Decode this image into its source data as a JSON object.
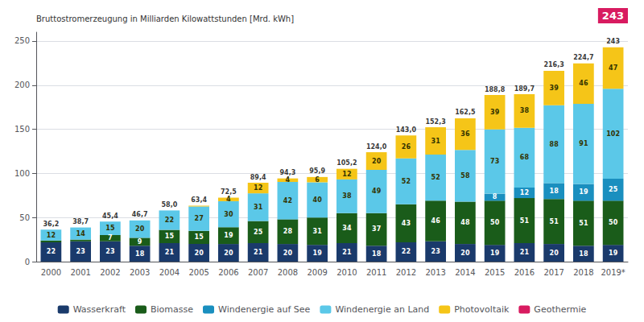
{
  "chart_data": {
    "type": "bar",
    "stacked": true,
    "y_label": "Bruttostromerzeugung in Milliarden Kilowattstunden [Mrd. kWh]",
    "categories": [
      "2000",
      "2001",
      "2002",
      "2003",
      "2004",
      "2005",
      "2006",
      "2007",
      "2008",
      "2009",
      "2010",
      "2011",
      "2012",
      "2013",
      "2014",
      "2015",
      "2016",
      "2017",
      "2018",
      "2019*"
    ],
    "series": [
      {
        "name": "Wasserkraft",
        "color": "#1a3a6b",
        "data_labels": true,
        "values": [
          22,
          23,
          23,
          18,
          21,
          20,
          20,
          21,
          20,
          19,
          21,
          18,
          22,
          23,
          20,
          19,
          21,
          20,
          18,
          19
        ]
      },
      {
        "name": "Biomasse",
        "color": "#1a5c1a",
        "data_labels": true,
        "values": [
          2,
          2,
          7,
          9,
          15,
          15,
          19,
          25,
          28,
          31,
          34,
          37,
          43,
          46,
          48,
          50,
          51,
          51,
          51,
          50
        ],
        "value_labels": [
          null,
          null,
          "7",
          "9",
          "15",
          "15",
          "19",
          "25",
          "28",
          "31",
          "34",
          "37",
          "43",
          "46",
          "48",
          "50",
          "51",
          "51",
          "51",
          "50"
        ]
      },
      {
        "name": "Windenergie auf See",
        "color": "#1a8fbf",
        "data_labels": true,
        "values": [
          0,
          0,
          0,
          0,
          0,
          0,
          0,
          0,
          0,
          0,
          0,
          0,
          0,
          0,
          0,
          8,
          12,
          18,
          19,
          25
        ],
        "value_labels": [
          null,
          null,
          null,
          null,
          null,
          null,
          null,
          null,
          null,
          null,
          null,
          null,
          null,
          null,
          null,
          "8",
          "12",
          "18",
          "19",
          "25"
        ]
      },
      {
        "name": "Windenergie an Land",
        "color": "#5bc8e8",
        "data_labels": true,
        "values": [
          12.2,
          13.7,
          15.4,
          19.7,
          22,
          27.4,
          29.5,
          31.4,
          42.3,
          39.9,
          38.2,
          49,
          52,
          52.3,
          58.5,
          72.8,
          67.7,
          88.3,
          90.7,
          102
        ],
        "value_labels": [
          "12",
          "14",
          "15",
          "20",
          "22",
          "27",
          "30",
          "31",
          "42",
          "40",
          "38",
          "49",
          "52",
          "52",
          "58",
          "73",
          "68",
          "88",
          "91",
          "102"
        ]
      },
      {
        "name": "Photovoltaik",
        "color": "#f5c518",
        "data_labels": true,
        "values": [
          0,
          0,
          0,
          0,
          0,
          1,
          4,
          12,
          4,
          6,
          12,
          20,
          26,
          31,
          36,
          39,
          38,
          39,
          46,
          47
        ],
        "value_labels": [
          null,
          null,
          null,
          null,
          null,
          null,
          "4",
          "12",
          "4",
          "6",
          "12",
          "20",
          "26",
          "31",
          "36",
          "39",
          "38",
          "39",
          "46",
          "47"
        ]
      },
      {
        "name": "Geothermie",
        "color": "#d81b60",
        "data_labels": false,
        "values": [
          0,
          0,
          0,
          0,
          0,
          0,
          0,
          0,
          0,
          0,
          0,
          0,
          0,
          0,
          0,
          0,
          0,
          0,
          0,
          0
        ]
      }
    ],
    "totals": {
      "values": [
        36.2,
        38.7,
        45.4,
        46.7,
        58.0,
        63.4,
        72.5,
        89.4,
        94.3,
        95.9,
        105.2,
        124.0,
        143.0,
        152.3,
        162.5,
        188.8,
        189.7,
        216.3,
        224.7,
        243
      ],
      "value_labels": [
        "36,2",
        "38,7",
        "45,4",
        "46,7",
        "58,0",
        "63,4",
        "72,5",
        "89,4",
        "94,3",
        "95,9",
        "105,2",
        "124,0",
        "143,0",
        "152,3",
        "162,5",
        "188,8",
        "189,7",
        "216,3",
        "224,7",
        "243"
      ]
    },
    "annotations": [
      {
        "text": "243",
        "color": "#d81b60"
      }
    ],
    "ylim": [
      0,
      260
    ],
    "yticks": [
      0,
      50,
      100,
      150,
      200,
      250
    ],
    "grid": true,
    "legend": "bottom"
  }
}
